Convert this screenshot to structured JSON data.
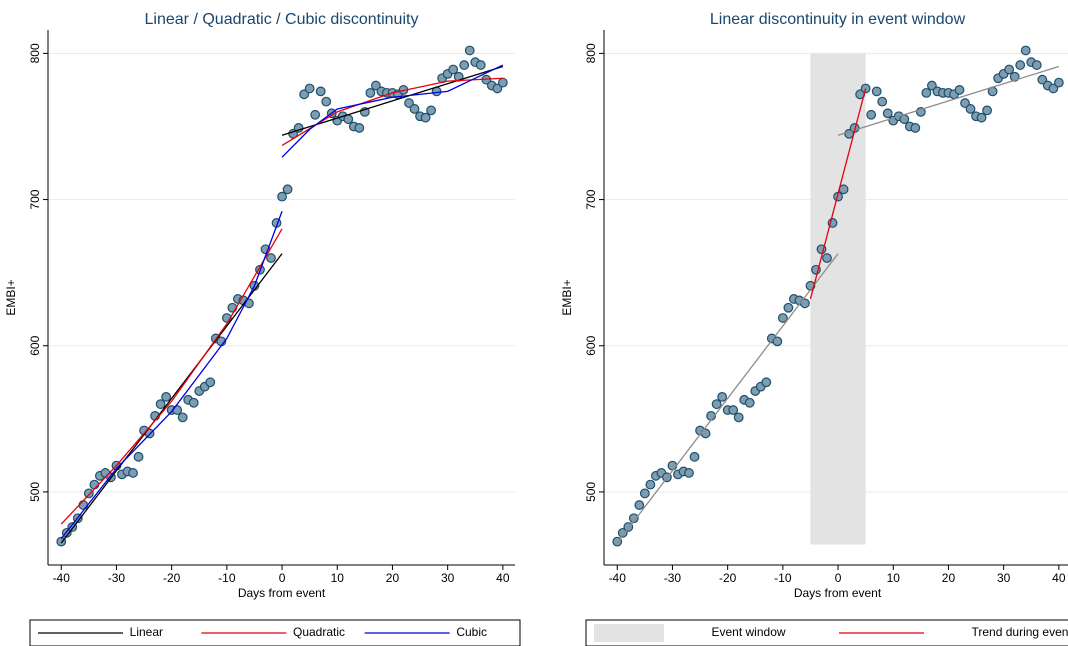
{
  "chart_data": [
    {
      "type": "scatter",
      "title": "Linear / Quadratic / Cubic discontinuity",
      "x_label": "Days from event",
      "y_label": "EMBI+",
      "xlim": [
        -42.4,
        42.2
      ],
      "ylim": [
        450,
        816
      ],
      "xticks": [
        -40,
        -30,
        -20,
        -10,
        0,
        10,
        20,
        30,
        40
      ],
      "yticks": [
        500,
        600,
        700,
        800
      ],
      "grid": true,
      "marker_color": "#7d9db2",
      "marker_edge_color": "#1f4e6b",
      "x": [
        -40,
        -39,
        -38,
        -37,
        -36,
        -35,
        -34,
        -33,
        -32,
        -31,
        -30,
        -29,
        -28,
        -27,
        -26,
        -25,
        -24,
        -23,
        -22,
        -21,
        -20,
        -19,
        -18,
        -17,
        -16,
        -15,
        -14,
        -13,
        -12,
        -11,
        -10,
        -9,
        -8,
        -7,
        -6,
        -5,
        -4,
        -3,
        -2,
        -1,
        0,
        1,
        2,
        3,
        4,
        5,
        6,
        7,
        8,
        9,
        10,
        11,
        12,
        13,
        14,
        15,
        16,
        17,
        18,
        19,
        20,
        21,
        22,
        23,
        24,
        25,
        26,
        27,
        28,
        29,
        30,
        31,
        32,
        33,
        34,
        35,
        36,
        37,
        38,
        39,
        40
      ],
      "values": [
        466,
        472,
        476,
        482,
        491,
        499,
        505,
        511,
        513,
        510,
        518,
        512,
        514,
        513,
        524,
        542,
        540,
        552,
        560,
        565,
        556,
        556,
        551,
        563,
        561,
        569,
        572,
        575,
        605,
        603,
        619,
        626,
        632,
        631,
        629,
        641,
        652,
        666,
        660,
        684,
        702,
        707,
        745,
        749,
        772,
        776,
        758,
        774,
        767,
        759,
        754,
        757,
        755,
        750,
        749,
        760,
        773,
        778,
        774,
        773,
        773,
        772,
        775,
        766,
        762,
        757,
        756,
        761,
        774,
        783,
        786,
        789,
        784,
        792,
        802,
        794,
        792,
        782,
        778,
        776,
        780
      ],
      "fits": [
        {
          "name": "Linear",
          "color": "#000000",
          "segments": [
            {
              "x": [
                -40,
                0
              ],
              "values": [
                465,
                663
              ]
            },
            {
              "x": [
                0,
                40
              ],
              "values": [
                744,
                791
              ]
            }
          ]
        },
        {
          "name": "Quadratic",
          "color": "#e8000b",
          "segments": [
            {
              "x": [
                -40,
                -30,
                -20,
                -10,
                0
              ],
              "values": [
                478,
                518,
                562,
                615,
                680
              ]
            },
            {
              "x": [
                0,
                10,
                20,
                30,
                40
              ],
              "values": [
                737,
                760,
                773,
                781,
                783
              ]
            }
          ]
        },
        {
          "name": "Cubic",
          "color": "#0000e0",
          "segments": [
            {
              "x": [
                -40,
                -30,
                -20,
                -10,
                -5,
                0
              ],
              "values": [
                468,
                516,
                555,
                605,
                641,
                692
              ]
            },
            {
              "x": [
                0,
                5,
                10,
                20,
                30,
                40
              ],
              "values": [
                729,
                748,
                762,
                770,
                774,
                792
              ]
            }
          ]
        }
      ]
    },
    {
      "type": "scatter",
      "title": "Linear discontinuity in event window",
      "x_label": "Days from event",
      "y_label": "EMBI+",
      "xlim": [
        -42.4,
        42.2
      ],
      "ylim": [
        450,
        816
      ],
      "xticks": [
        -40,
        -30,
        -20,
        -10,
        0,
        10,
        20,
        30,
        40
      ],
      "yticks": [
        500,
        600,
        700,
        800
      ],
      "grid": true,
      "marker_color": "#7d9db2",
      "marker_edge_color": "#1f4e6b",
      "x": [
        -40,
        -39,
        -38,
        -37,
        -36,
        -35,
        -34,
        -33,
        -32,
        -31,
        -30,
        -29,
        -28,
        -27,
        -26,
        -25,
        -24,
        -23,
        -22,
        -21,
        -20,
        -19,
        -18,
        -17,
        -16,
        -15,
        -14,
        -13,
        -12,
        -11,
        -10,
        -9,
        -8,
        -7,
        -6,
        -5,
        -4,
        -3,
        -2,
        -1,
        0,
        1,
        2,
        3,
        4,
        5,
        6,
        7,
        8,
        9,
        10,
        11,
        12,
        13,
        14,
        15,
        16,
        17,
        18,
        19,
        20,
        21,
        22,
        23,
        24,
        25,
        26,
        27,
        28,
        29,
        30,
        31,
        32,
        33,
        34,
        35,
        36,
        37,
        38,
        39,
        40
      ],
      "values": [
        466,
        472,
        476,
        482,
        491,
        499,
        505,
        511,
        513,
        510,
        518,
        512,
        514,
        513,
        524,
        542,
        540,
        552,
        560,
        565,
        556,
        556,
        551,
        563,
        561,
        569,
        572,
        575,
        605,
        603,
        619,
        626,
        632,
        631,
        629,
        641,
        652,
        666,
        660,
        684,
        702,
        707,
        745,
        749,
        772,
        776,
        758,
        774,
        767,
        759,
        754,
        757,
        755,
        750,
        749,
        760,
        773,
        778,
        774,
        773,
        773,
        772,
        775,
        766,
        762,
        757,
        756,
        761,
        774,
        783,
        786,
        789,
        784,
        792,
        802,
        794,
        792,
        782,
        778,
        776,
        780
      ],
      "shade": {
        "name": "Event window",
        "color": "#e3e3e3",
        "x": [
          -5,
          5
        ],
        "y": [
          464,
          800
        ]
      },
      "fits": [
        {
          "color": "#8c8c8c",
          "segments": [
            {
              "x": [
                -40,
                0
              ],
              "values": [
                465,
                663
              ]
            },
            {
              "x": [
                0,
                40
              ],
              "values": [
                744,
                791
              ]
            }
          ]
        },
        {
          "name": "Trend during events",
          "color": "#e8000b",
          "segments": [
            {
              "x": [
                -5,
                5
              ],
              "values": [
                632,
                776
              ]
            }
          ]
        }
      ]
    }
  ]
}
